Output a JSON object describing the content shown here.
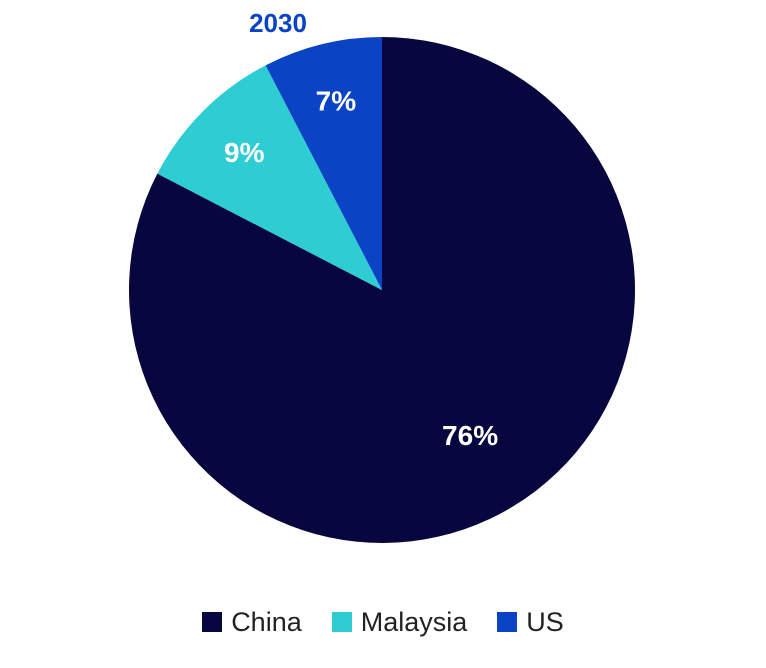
{
  "chart_data": {
    "type": "pie",
    "title": "2030",
    "categories": [
      "China",
      "Malaysia",
      "US"
    ],
    "values": [
      76,
      9,
      7
    ],
    "labels": [
      "76%",
      "9%",
      "7%"
    ],
    "colors": [
      "#07063f",
      "#2ecdd3",
      "#0a43c4"
    ],
    "title_color": "#0a43c4",
    "legend_position": "bottom"
  }
}
